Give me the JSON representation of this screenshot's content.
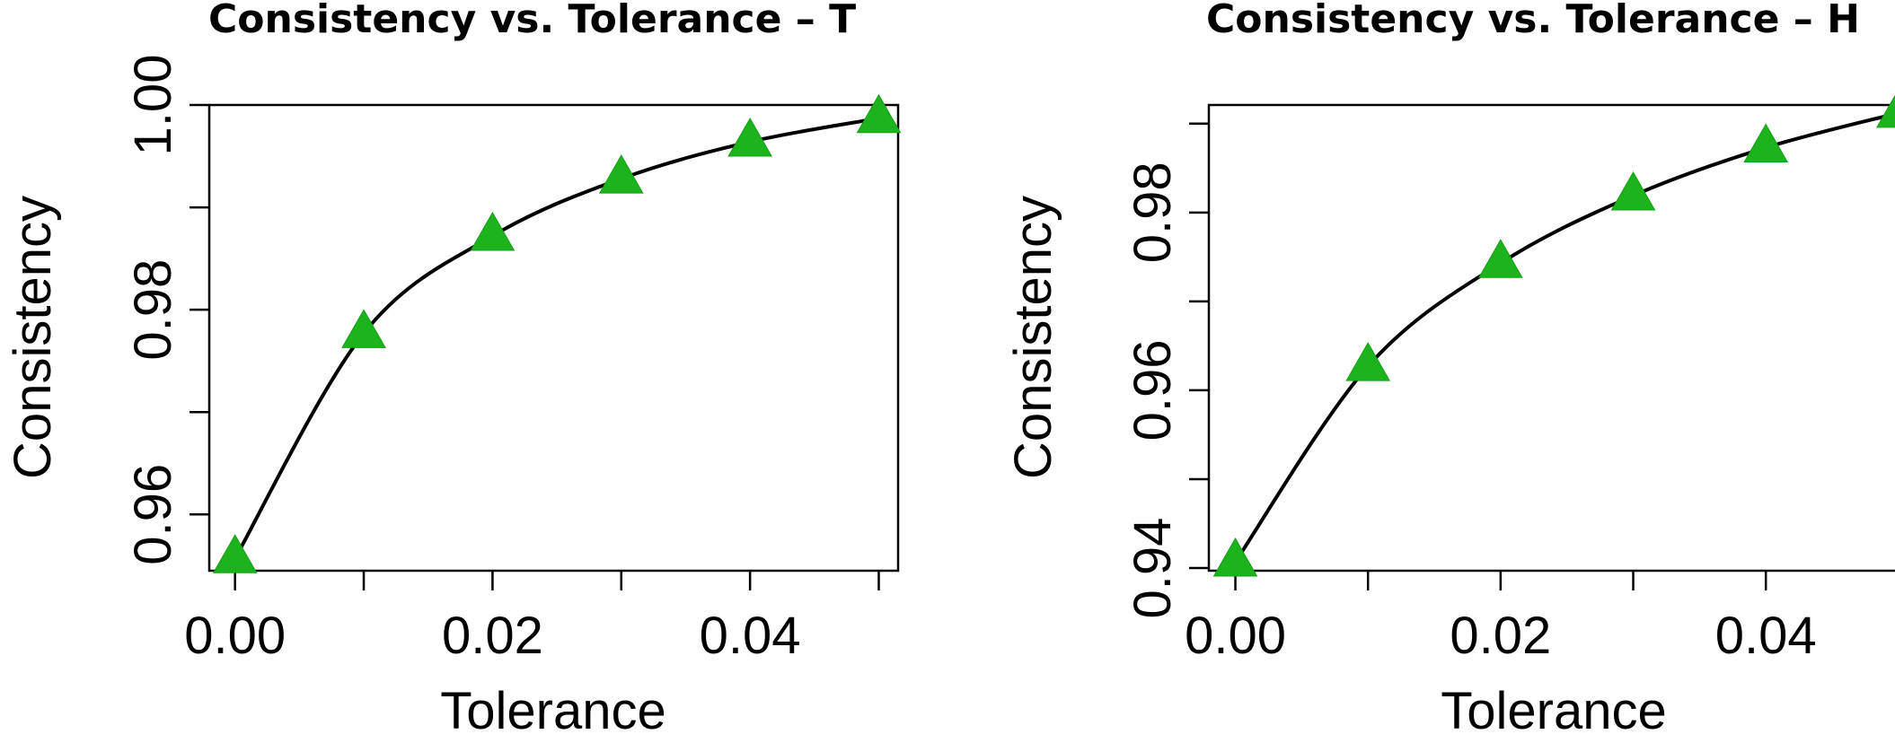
{
  "chart_data": [
    {
      "type": "line",
      "title": "Consistency vs. Tolerance – T",
      "xlabel": "Tolerance",
      "ylabel": "Consistency",
      "x": [
        0.0,
        0.01,
        0.02,
        0.03,
        0.04,
        0.05
      ],
      "series": [
        {
          "values": [
            0.9557,
            0.9777,
            0.9872,
            0.9928,
            0.9964,
            0.9987
          ]
        }
      ],
      "xlim": [
        -0.002,
        0.0515
      ],
      "ylim": [
        0.9545,
        1.0
      ],
      "x_ticks": [
        0.0,
        0.01,
        0.02,
        0.03,
        0.04,
        0.05
      ],
      "x_tick_labels": [
        "0.00",
        "",
        "0.02",
        "",
        "0.04",
        ""
      ],
      "y_ticks": [
        0.96,
        0.97,
        0.98,
        0.99,
        1.0
      ],
      "y_tick_labels": [
        "0.96",
        "",
        "0.98",
        "",
        "1.00"
      ],
      "marker": "triangle",
      "marker_color": "#1db31d",
      "line_color": "#000000",
      "grid": false
    },
    {
      "type": "line",
      "title": "Consistency vs. Tolerance – H",
      "xlabel": "Tolerance",
      "ylabel": "Consistency",
      "x": [
        0.0,
        0.01,
        0.02,
        0.03,
        0.04,
        0.05
      ],
      "series": [
        {
          "values": [
            0.9407,
            0.9627,
            0.9743,
            0.9819,
            0.9873,
            0.9912
          ]
        }
      ],
      "xlim": [
        -0.002,
        0.0515
      ],
      "ylim": [
        0.9397,
        0.9921
      ],
      "x_ticks": [
        0.0,
        0.01,
        0.02,
        0.03,
        0.04,
        0.05
      ],
      "x_tick_labels": [
        "0.00",
        "",
        "0.02",
        "",
        "0.04",
        ""
      ],
      "y_ticks": [
        0.94,
        0.95,
        0.96,
        0.97,
        0.98,
        0.99
      ],
      "y_tick_labels": [
        "0.94",
        "",
        "0.96",
        "",
        "0.98",
        ""
      ],
      "marker": "triangle",
      "marker_color": "#1db31d",
      "line_color": "#000000",
      "grid": false
    }
  ]
}
